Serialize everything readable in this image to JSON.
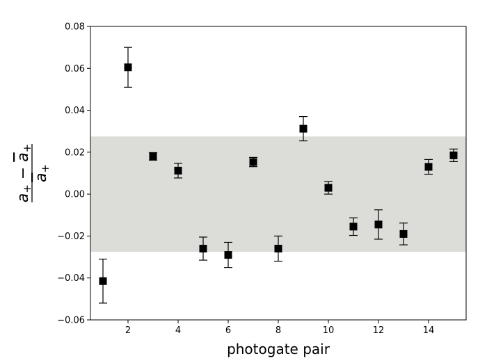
{
  "chart_data": {
    "type": "scatter",
    "title": "",
    "xlabel": "photogate pair",
    "ylabel": "(a₊ − ā₊) / ā₊",
    "xlim": [
      0.5,
      15.5
    ],
    "ylim": [
      -0.06,
      0.08
    ],
    "xticks": [
      2,
      4,
      6,
      8,
      10,
      12,
      14
    ],
    "yticks": [
      -0.06,
      -0.04,
      -0.02,
      0.0,
      0.02,
      0.04,
      0.06,
      0.08
    ],
    "xtick_labels": [
      "2",
      "4",
      "6",
      "8",
      "10",
      "12",
      "14"
    ],
    "ytick_labels": [
      "−0.06",
      "−0.04",
      "−0.02",
      "0.00",
      "0.02",
      "0.04",
      "0.06",
      "0.08"
    ],
    "band": {
      "ymin": -0.0275,
      "ymax": 0.0275,
      "color": "#dcdcd9"
    },
    "marker": {
      "shape": "square",
      "color": "#000000"
    },
    "grid": false,
    "legend": "none",
    "points": [
      {
        "x": 1,
        "y": -0.0415,
        "err": 0.0105
      },
      {
        "x": 2,
        "y": 0.0605,
        "err": 0.0095
      },
      {
        "x": 3,
        "y": 0.018,
        "err": 0.0018
      },
      {
        "x": 4,
        "y": 0.0112,
        "err": 0.0035
      },
      {
        "x": 5,
        "y": -0.026,
        "err": 0.0055
      },
      {
        "x": 6,
        "y": -0.029,
        "err": 0.006
      },
      {
        "x": 7,
        "y": 0.0153,
        "err": 0.0022
      },
      {
        "x": 8,
        "y": -0.026,
        "err": 0.006
      },
      {
        "x": 9,
        "y": 0.0312,
        "err": 0.0058
      },
      {
        "x": 10,
        "y": 0.003,
        "err": 0.003
      },
      {
        "x": 11,
        "y": -0.0155,
        "err": 0.0042
      },
      {
        "x": 12,
        "y": -0.0145,
        "err": 0.007
      },
      {
        "x": 13,
        "y": -0.019,
        "err": 0.0052
      },
      {
        "x": 14,
        "y": 0.013,
        "err": 0.0035
      },
      {
        "x": 15,
        "y": 0.0185,
        "err": 0.003
      }
    ]
  }
}
